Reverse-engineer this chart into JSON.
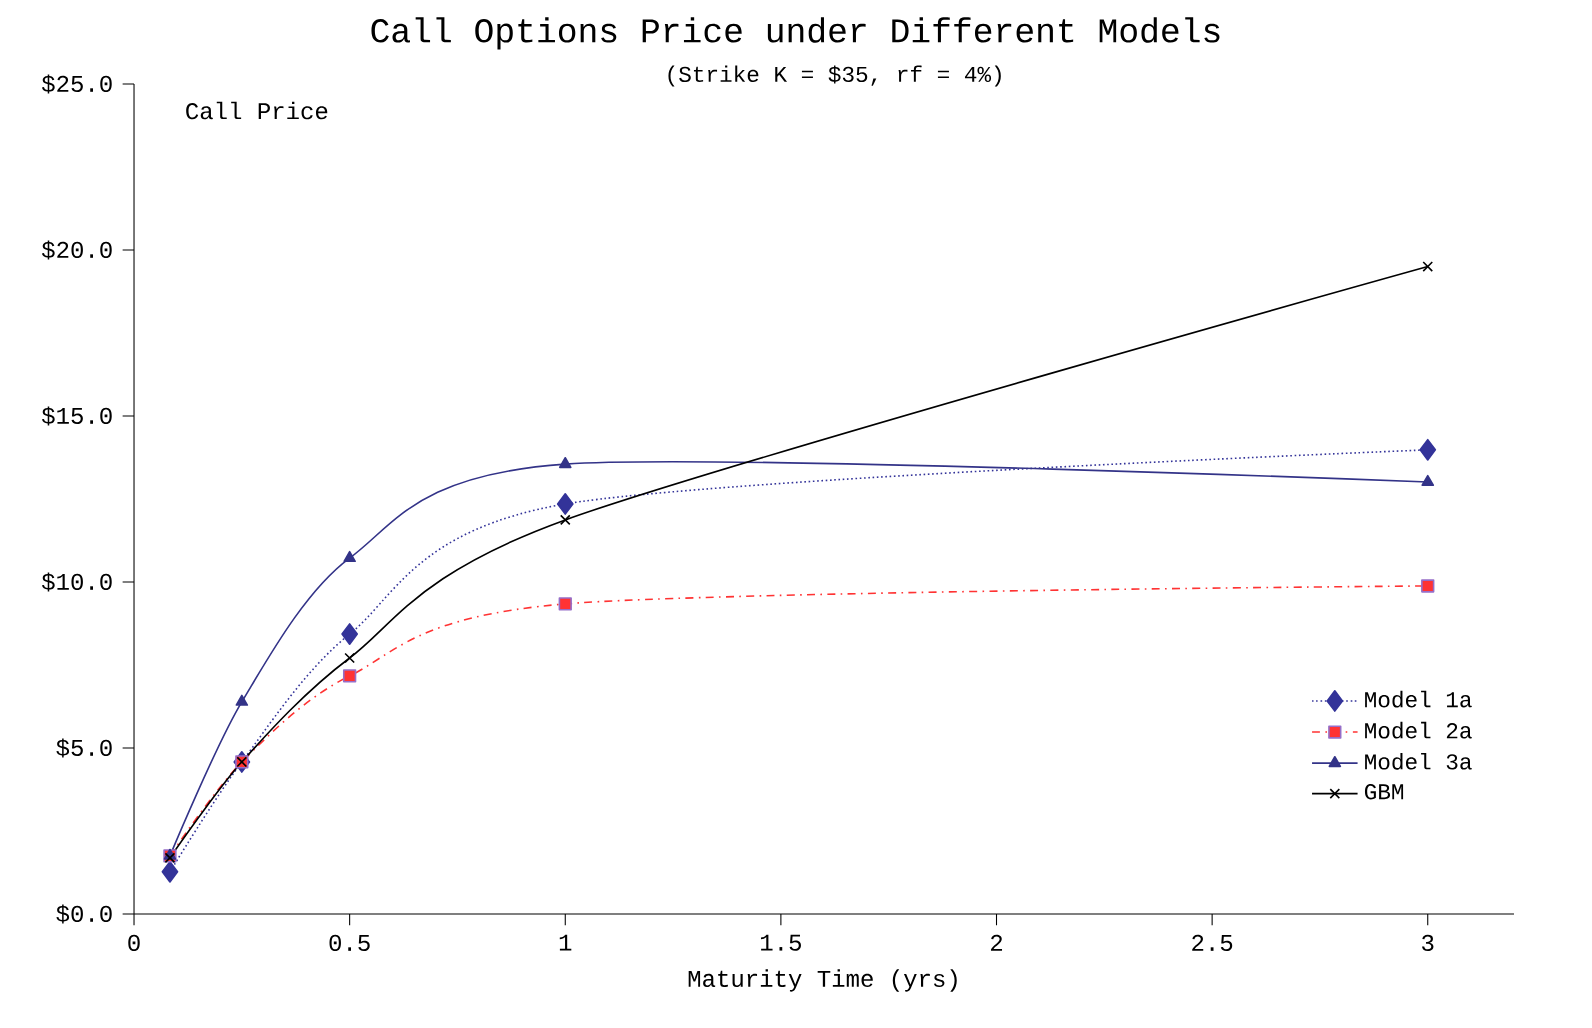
{
  "chart_data": {
    "type": "line",
    "title": "Call Options Price under Different Models",
    "subtitle": "(Strike K = $35, rf = 4%)",
    "xlabel": "Maturity Time (yrs)",
    "ylabel": "Call Price",
    "x": [
      0.0833,
      0.25,
      0.5,
      1,
      3
    ],
    "series": [
      {
        "name": "Model 1a",
        "color": "#333399",
        "marker": "diamond",
        "line_style": "dotted",
        "values": [
          1.27,
          4.58,
          8.43,
          12.35,
          13.98
        ]
      },
      {
        "name": "Model 2a",
        "color": "#ff3333",
        "marker": "square",
        "line_style": "dashed",
        "values": [
          1.75,
          4.58,
          7.17,
          9.34,
          9.88
        ]
      },
      {
        "name": "Model 3a",
        "color": "#333388",
        "marker": "triangle",
        "line_style": "solid",
        "values": [
          1.75,
          6.39,
          10.72,
          13.55,
          13.01
        ]
      },
      {
        "name": "GBM",
        "color": "#000000",
        "marker": "cross",
        "line_style": "solid",
        "values": [
          1.69,
          4.58,
          7.71,
          11.87,
          19.5
        ]
      }
    ],
    "xlim": [
      0,
      3.2
    ],
    "xticks": [
      0,
      0.5,
      1,
      1.5,
      2,
      2.5,
      3
    ],
    "ylim": [
      0,
      25
    ],
    "yticks": [
      {
        "value": 0,
        "label": "$0.0"
      },
      {
        "value": 5,
        "label": "$5.0"
      },
      {
        "value": 10,
        "label": "$10.0"
      },
      {
        "value": 15,
        "label": "$15.0"
      },
      {
        "value": 20,
        "label": "$20.0"
      },
      {
        "value": 25,
        "label": "$25.0"
      }
    ],
    "grid": false,
    "legend": "bottom right"
  }
}
